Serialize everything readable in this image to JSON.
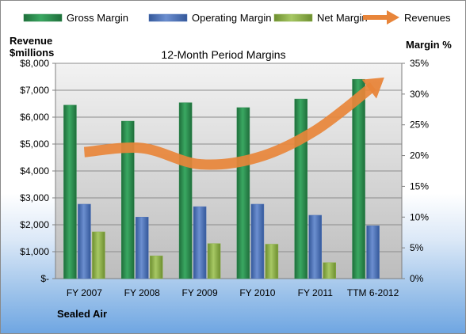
{
  "chart_data": {
    "type": "bar",
    "title": "12-Month Period Margins",
    "company": "Sealed Air",
    "y_left_label_lines": [
      "Revenue",
      "$millions"
    ],
    "y_right_label": "Margin %",
    "categories": [
      "FY 2007",
      "FY 2008",
      "FY 2009",
      "FY 2010",
      "FY 2011",
      "TTM 6-2012"
    ],
    "y_left_ticks": [
      "$-",
      "$1,000",
      "$2,000",
      "$3,000",
      "$4,000",
      "$5,000",
      "$6,000",
      "$7,000",
      "$8,000"
    ],
    "y_right_ticks": [
      "0%",
      "5%",
      "10%",
      "15%",
      "20%",
      "25%",
      "30%",
      "35%"
    ],
    "y_left_range": [
      0,
      8000
    ],
    "y_right_range": [
      0,
      35
    ],
    "series": [
      {
        "name": "Gross Margin",
        "axis": "right",
        "kind": "bar",
        "color": "#2e8b4f",
        "values": [
          28.2,
          25.6,
          28.6,
          27.8,
          29.2,
          32.4
        ]
      },
      {
        "name": "Operating Margin",
        "axis": "right",
        "kind": "bar",
        "color": "#4f73b7",
        "values": [
          12.1,
          10.0,
          11.7,
          12.1,
          10.3,
          8.6
        ]
      },
      {
        "name": "Net Margin",
        "axis": "right",
        "kind": "bar",
        "color": "#8fb24a",
        "values": [
          7.6,
          3.7,
          5.7,
          5.6,
          2.6,
          0
        ]
      },
      {
        "name": "Revenues",
        "axis": "left",
        "kind": "line",
        "color": "#e8853a",
        "values": [
          4700,
          4850,
          4250,
          4500,
          5500,
          7150
        ]
      }
    ],
    "grid": true,
    "legend_position": "top"
  }
}
